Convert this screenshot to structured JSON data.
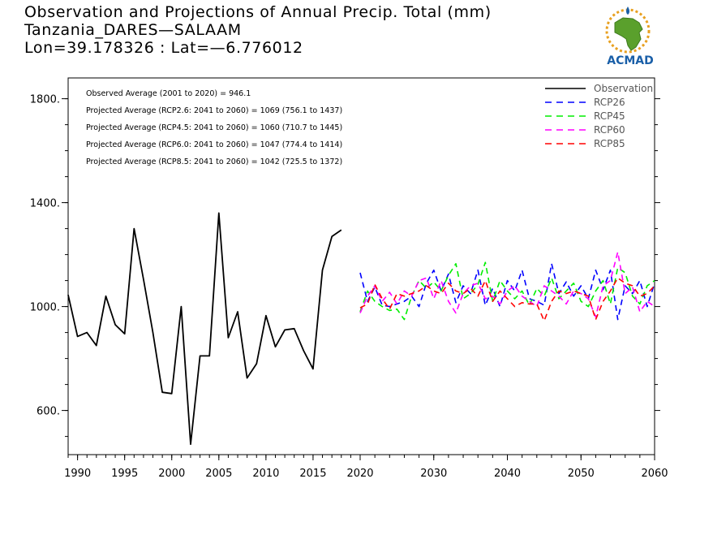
{
  "header": {
    "line1": "Observation and Projections of Annual Precip. Total (mm)",
    "line2": "Tanzania_DARES—SALAAM",
    "line3": "Lon=39.178326 : Lat=—6.776012"
  },
  "logo": {
    "text": "ACMAD",
    "colors": {
      "africa": "#5aa02c",
      "ring": "#e8a020",
      "text": "#1a5fa8"
    }
  },
  "chart_data": {
    "type": "line",
    "xlim": [
      1989,
      2060
    ],
    "ylim": [
      430,
      1880
    ],
    "x_ticks": [
      {
        "value": 1990,
        "label": "1990"
      },
      {
        "value": 1995,
        "label": "1995"
      },
      {
        "value": 2000,
        "label": "2000"
      },
      {
        "value": 2005,
        "label": "2005"
      },
      {
        "value": 2010,
        "label": "2010"
      },
      {
        "value": 2015,
        "label": "2015"
      },
      {
        "value": 2020,
        "label": "2020"
      },
      {
        "value": 2030,
        "label": "2030"
      },
      {
        "value": 2040,
        "label": "2040"
      },
      {
        "value": 2050,
        "label": "2050"
      },
      {
        "value": 2060,
        "label": "2060"
      }
    ],
    "y_ticks": [
      {
        "value": 600,
        "label": "600."
      },
      {
        "value": 1000,
        "label": "1000."
      },
      {
        "value": 1400,
        "label": "1400."
      },
      {
        "value": 1800,
        "label": "1800."
      }
    ],
    "annotations": [
      "Observed Average (2001 to 2020) = 946.1",
      "Projected Average (RCP2.6: 2041 to 2060) = 1069 (756.1 to 1437)",
      "Projected Average (RCP4.5: 2041 to 2060) = 1060 (710.7 to 1445)",
      "Projected Average (RCP6.0: 2041 to 2060) = 1047 (774.4 to 1414)",
      "Projected Average (RCP8.5: 2041 to 2060) = 1042 (725.5 to 1372)"
    ],
    "legend_position": "top-right",
    "series": [
      {
        "name": "Observation",
        "color": "#000000",
        "dashed": false,
        "x": [
          1989,
          1990,
          1991,
          1992,
          1993,
          1994,
          1995,
          1996,
          1997,
          1998,
          1999,
          2000,
          2001,
          2002,
          2003,
          2004,
          2005,
          2006,
          2007,
          2008,
          2009,
          2010,
          2011,
          2012,
          2013,
          2014,
          2015,
          2016,
          2017,
          2018,
          2019,
          2020
        ],
        "y": [
          1045,
          885,
          900,
          850,
          1040,
          930,
          895,
          1300,
          1105,
          900,
          670,
          665,
          1000,
          470,
          810,
          810,
          1360,
          880,
          980,
          725,
          780,
          965,
          845,
          910,
          915,
          830,
          760,
          1140,
          1270,
          1295,
          null,
          null
        ]
      },
      {
        "name": "RCP26",
        "color": "#0000ff",
        "dashed": true,
        "x": [
          2020,
          2021,
          2022,
          2023,
          2024,
          2025,
          2026,
          2027,
          2028,
          2029,
          2030,
          2031,
          2032,
          2033,
          2034,
          2035,
          2036,
          2037,
          2038,
          2039,
          2040,
          2041,
          2042,
          2043,
          2044,
          2045,
          2046,
          2047,
          2048,
          2049,
          2050,
          2051,
          2052,
          2053,
          2054,
          2055,
          2056,
          2057,
          2058,
          2059,
          2060
        ],
        "y": [
          1130,
          1020,
          1075,
          1005,
          1000,
          1010,
          1020,
          1040,
          1000,
          1090,
          1140,
          1060,
          1125,
          1015,
          1080,
          1050,
          1140,
          1005,
          1070,
          1000,
          1100,
          1060,
          1140,
          1030,
          1020,
          1005,
          1165,
          1050,
          1095,
          1040,
          1080,
          1030,
          1140,
          1065,
          1140,
          950,
          1080,
          1050,
          1100,
          1000,
          1090
        ]
      },
      {
        "name": "RCP45",
        "color": "#00ee00",
        "dashed": true,
        "x": [
          2020,
          2021,
          2022,
          2023,
          2024,
          2025,
          2026,
          2027,
          2028,
          2029,
          2030,
          2031,
          2032,
          2033,
          2034,
          2035,
          2036,
          2037,
          2038,
          2039,
          2040,
          2041,
          2042,
          2043,
          2044,
          2045,
          2046,
          2047,
          2048,
          2049,
          2050,
          2051,
          2052,
          2053,
          2054,
          2055,
          2056,
          2057,
          2058,
          2059,
          2060
        ],
        "y": [
          980,
          1060,
          1020,
          1000,
          985,
          990,
          950,
          1040,
          1100,
          1070,
          1095,
          1060,
          1120,
          1165,
          1030,
          1050,
          1085,
          1170,
          1020,
          1100,
          1060,
          1030,
          1060,
          1005,
          1070,
          1040,
          1110,
          1030,
          1060,
          1090,
          1020,
          1000,
          1060,
          1100,
          1010,
          1150,
          1130,
          1040,
          1010,
          1080,
          1100
        ]
      },
      {
        "name": "RCP60",
        "color": "#ff00ff",
        "dashed": true,
        "x": [
          2020,
          2021,
          2022,
          2023,
          2024,
          2025,
          2026,
          2027,
          2028,
          2029,
          2030,
          2031,
          2032,
          2033,
          2034,
          2035,
          2036,
          2037,
          2038,
          2039,
          2040,
          2041,
          2042,
          2043,
          2044,
          2045,
          2046,
          2047,
          2048,
          2049,
          2050,
          2051,
          2052,
          2053,
          2054,
          2055,
          2056,
          2057,
          2058,
          2059,
          2060
        ],
        "y": [
          975,
          1040,
          1080,
          1020,
          1055,
          1010,
          1060,
          1040,
          1100,
          1110,
          1030,
          1100,
          1020,
          975,
          1050,
          1080,
          1090,
          1030,
          1040,
          1010,
          1060,
          1080,
          1040,
          1020,
          1000,
          1080,
          1060,
          1040,
          1010,
          1060,
          1050,
          1030,
          960,
          1080,
          1100,
          1210,
          1050,
          1075,
          980,
          1020,
          1000
        ]
      },
      {
        "name": "RCP85",
        "color": "#ff0000",
        "dashed": true,
        "x": [
          2020,
          2021,
          2022,
          2023,
          2024,
          2025,
          2026,
          2027,
          2028,
          2029,
          2030,
          2031,
          2032,
          2033,
          2034,
          2035,
          2036,
          2037,
          2038,
          2039,
          2040,
          2041,
          2042,
          2043,
          2044,
          2045,
          2046,
          2047,
          2048,
          2049,
          2050,
          2051,
          2052,
          2053,
          2054,
          2055,
          2056,
          2057,
          2058,
          2059,
          2060
        ],
        "y": [
          995,
          1010,
          1085,
          1030,
          990,
          1050,
          1040,
          1050,
          1060,
          1080,
          1060,
          1050,
          1090,
          1060,
          1050,
          1070,
          1040,
          1100,
          1020,
          1060,
          1030,
          1000,
          1015,
          1010,
          1010,
          945,
          1020,
          1060,
          1050,
          1060,
          1050,
          1040,
          950,
          1020,
          1060,
          1110,
          1090,
          1080,
          1040,
          1050,
          1080
        ]
      }
    ]
  }
}
